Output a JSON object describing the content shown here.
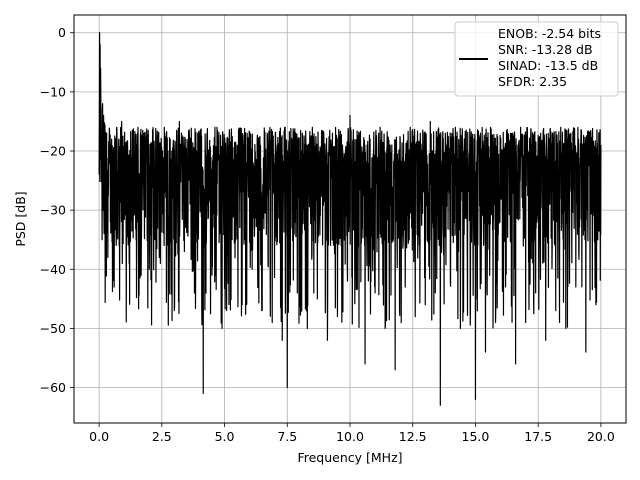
{
  "chart_data": {
    "type": "line",
    "xlabel": "Frequency [MHz]",
    "ylabel": "PSD [dB]",
    "xlim": [
      -1.0,
      21.0
    ],
    "ylim": [
      -66.0,
      3.0
    ],
    "xticks": [
      0.0,
      2.5,
      5.0,
      7.5,
      10.0,
      12.5,
      15.0,
      17.5,
      20.0
    ],
    "xtick_labels": [
      "0.0",
      "2.5",
      "5.0",
      "7.5",
      "10.0",
      "12.5",
      "15.0",
      "17.5",
      "20.0"
    ],
    "yticks": [
      0,
      -10,
      -20,
      -30,
      -40,
      -50,
      -60
    ],
    "ytick_labels": [
      "0",
      "−10",
      "−20",
      "−30",
      "−40",
      "−50",
      "−60"
    ],
    "grid": true,
    "legend_position": "upper-right",
    "legend_lines": [
      "ENOB: -2.54 bits",
      "SNR: -13.28 dB",
      "SINAD: -13.5 dB",
      "SFDR: 2.35"
    ],
    "colors": {
      "line": "#000000",
      "grid": "#b0b0b0"
    },
    "series": [
      {
        "x": [
          0.0,
          0.02,
          0.04,
          0.06,
          0.08,
          0.1,
          0.12,
          0.14,
          0.16,
          0.18,
          0.2,
          0.22,
          0.25,
          0.3,
          0.35,
          0.4,
          0.45,
          0.5,
          0.6,
          0.7,
          0.8,
          0.9,
          1.0,
          1.2,
          1.4,
          1.6,
          1.8,
          2.0,
          2.2,
          2.4,
          2.6,
          2.8,
          3.0,
          3.2,
          3.4,
          3.6,
          3.8,
          4.0,
          4.15,
          4.3,
          4.5,
          4.7,
          4.9,
          5.1,
          5.3,
          5.5,
          5.7,
          5.9,
          6.1,
          6.3,
          6.5,
          6.7,
          6.9,
          7.1,
          7.3,
          7.5,
          7.7,
          7.9,
          8.1,
          8.3,
          8.5,
          8.7,
          8.9,
          9.1,
          9.3,
          9.5,
          9.7,
          9.9,
          10.0,
          10.2,
          10.4,
          10.6,
          10.8,
          11.0,
          11.2,
          11.4,
          11.6,
          11.8,
          12.0,
          12.2,
          12.4,
          12.6,
          12.8,
          13.0,
          13.2,
          13.4,
          13.6,
          13.8,
          14.0,
          14.2,
          14.4,
          14.6,
          14.8,
          15.0,
          15.2,
          15.4,
          15.6,
          15.8,
          16.0,
          16.2,
          16.4,
          16.6,
          16.8,
          17.0,
          17.2,
          17.4,
          17.6,
          17.8,
          18.0,
          18.2,
          18.4,
          18.6,
          18.8,
          19.0,
          19.2,
          19.4,
          19.6,
          19.8,
          20.0
        ],
        "y": [
          -24,
          0,
          -2,
          -6,
          -13,
          -18,
          -35,
          -12,
          -30,
          -14,
          -34,
          -16,
          -28,
          -17,
          -38,
          -20,
          -32,
          -18,
          -43,
          -16,
          -36,
          -15,
          -31,
          -39,
          -22,
          -35,
          -17,
          -40,
          -20,
          -38,
          -16,
          -35,
          -47,
          -15,
          -37,
          -18,
          -44,
          -19,
          -61,
          -17,
          -41,
          -16,
          -50,
          -18,
          -35,
          -19,
          -46,
          -17,
          -40,
          -18,
          -47,
          -17,
          -49,
          -19,
          -52,
          -60,
          -18,
          -44,
          -17,
          -50,
          -16,
          -45,
          -18,
          -52,
          -17,
          -48,
          -19,
          -42,
          -14,
          -40,
          -17,
          -56,
          -18,
          -44,
          -16,
          -50,
          -19,
          -57,
          -18,
          -43,
          -16,
          -48,
          -17,
          -46,
          -15,
          -44,
          -63,
          -17,
          -42,
          -16,
          -50,
          -18,
          -47,
          -62,
          -17,
          -54,
          -16,
          -49,
          -18,
          -43,
          -17,
          -56,
          -16,
          -49,
          -18,
          -44,
          -17,
          -52,
          -18,
          -47,
          -16,
          -50,
          -17,
          -43,
          -18,
          -54,
          -17,
          -46,
          -19
        ]
      }
    ]
  }
}
